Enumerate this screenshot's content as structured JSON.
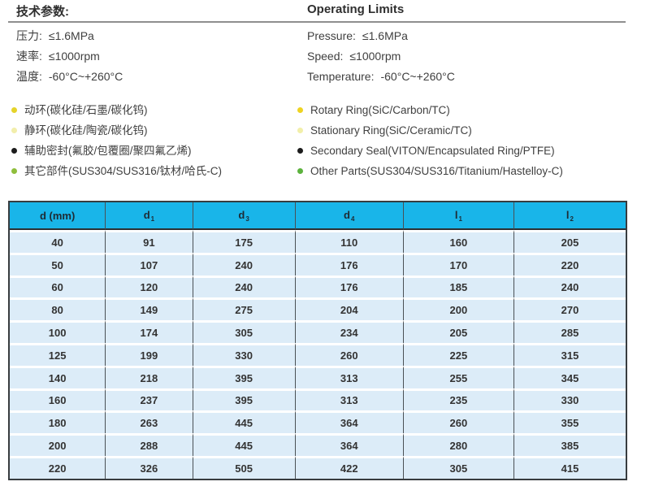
{
  "header": {
    "title_cn": "技术参数:",
    "title_en": "Operating Limits",
    "specs_cn": [
      {
        "label": "压力:",
        "value": "≤1.6MPa"
      },
      {
        "label": "速率:",
        "value": "≤1000rpm"
      },
      {
        "label": "温度:",
        "value": "-60°C~+260°C"
      }
    ],
    "specs_en": [
      {
        "label": "Pressure:",
        "value": "≤1.6MPa"
      },
      {
        "label": "Speed:",
        "value": "≤1000rpm"
      },
      {
        "label": "Temperature:",
        "value": "-60°C~+260°C"
      }
    ]
  },
  "materials": {
    "left": [
      {
        "text": "动环(碳化硅/石墨/碳化钨)",
        "bullet_color": "#e5d32a"
      },
      {
        "text": "静环(碳化硅/陶瓷/碳化钨)",
        "bullet_color": "#f2eeab"
      },
      {
        "text": "辅助密封(氟胶/包覆圈/聚四氟乙烯)",
        "bullet_color": "#1c1c1c"
      },
      {
        "text": "其它部件(SUS304/SUS316/钛材/哈氏-C)",
        "bullet_color": "#8fbe3c"
      }
    ],
    "right": [
      {
        "text": "Rotary Ring(SiC/Carbon/TC)",
        "bullet_color": "#eed321"
      },
      {
        "text": "Stationary Ring(SiC/Ceramic/TC)",
        "bullet_color": "#f2efa9"
      },
      {
        "text": "Secondary Seal(VITON/Encapsulated Ring/PTFE)",
        "bullet_color": "#1c1c1c"
      },
      {
        "text": "Other Parts(SUS304/SUS316/Titanium/Hastelloy-C)",
        "bullet_color": "#5cb23d"
      }
    ]
  },
  "table": {
    "columns": [
      {
        "base": "d (mm)",
        "sub": ""
      },
      {
        "base": "d",
        "sub": "1"
      },
      {
        "base": "d",
        "sub": "3"
      },
      {
        "base": "d",
        "sub": "4"
      },
      {
        "base": "l",
        "sub": "1"
      },
      {
        "base": "l",
        "sub": "2"
      }
    ],
    "rows": [
      [
        "40",
        "91",
        "175",
        "110",
        "160",
        "205"
      ],
      [
        "50",
        "107",
        "240",
        "176",
        "170",
        "220"
      ],
      [
        "60",
        "120",
        "240",
        "176",
        "185",
        "240"
      ],
      [
        "80",
        "149",
        "275",
        "204",
        "200",
        "270"
      ],
      [
        "100",
        "174",
        "305",
        "234",
        "205",
        "285"
      ],
      [
        "125",
        "199",
        "330",
        "260",
        "225",
        "315"
      ],
      [
        "140",
        "218",
        "395",
        "313",
        "255",
        "345"
      ],
      [
        "160",
        "237",
        "395",
        "313",
        "235",
        "330"
      ],
      [
        "180",
        "263",
        "445",
        "364",
        "260",
        "355"
      ],
      [
        "200",
        "288",
        "445",
        "364",
        "280",
        "385"
      ],
      [
        "220",
        "326",
        "505",
        "422",
        "305",
        "415"
      ]
    ],
    "colors": {
      "header_bg": "#19b5e9",
      "row_bg": "#dcecf8",
      "border": "#383c3f"
    }
  }
}
